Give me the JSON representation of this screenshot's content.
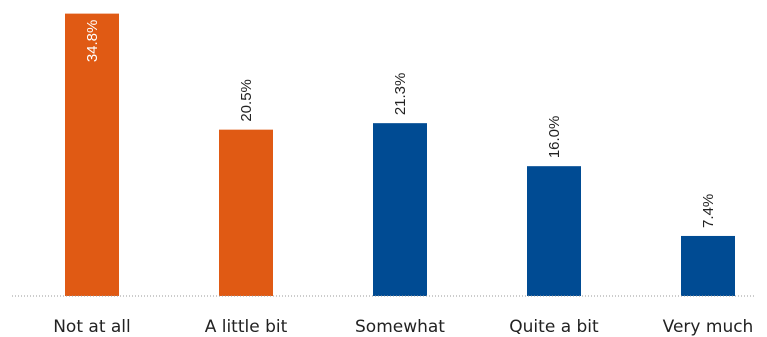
{
  "chart_data": {
    "type": "bar",
    "categories": [
      "Not at all",
      "A little bit",
      "Somewhat",
      "Quite a bit",
      "Very much"
    ],
    "values": [
      34.8,
      20.5,
      21.3,
      16.0,
      7.4
    ],
    "value_labels": [
      "34.8%",
      "20.5%",
      "21.3%",
      "16.0%",
      "7.4%"
    ],
    "bar_colors": [
      "#e05a14",
      "#e05a14",
      "#004b93",
      "#004b93",
      "#004b93"
    ],
    "ylim": [
      0,
      35
    ],
    "grid": false,
    "baseline_style": "dotted",
    "title": "",
    "xlabel": "",
    "ylabel": ""
  }
}
